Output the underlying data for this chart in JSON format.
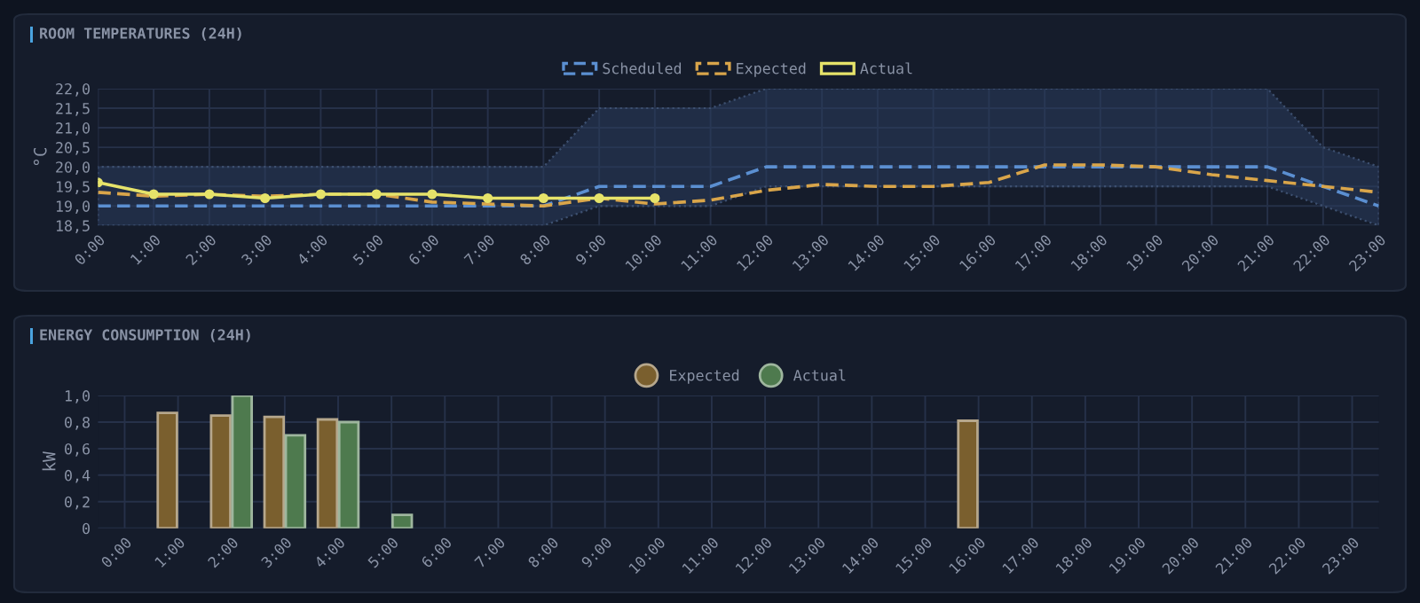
{
  "chart_data": [
    {
      "type": "line",
      "title": "ROOM TEMPERATURES (24H)",
      "ylabel": "°C",
      "categories": [
        "0:00",
        "1:00",
        "2:00",
        "3:00",
        "4:00",
        "5:00",
        "6:00",
        "7:00",
        "8:00",
        "9:00",
        "10:00",
        "11:00",
        "12:00",
        "13:00",
        "14:00",
        "15:00",
        "16:00",
        "17:00",
        "18:00",
        "19:00",
        "20:00",
        "21:00",
        "22:00",
        "23:00"
      ],
      "series": [
        {
          "name": "Scheduled",
          "color": "#5b8fd1",
          "line_style": "dashed",
          "marker": "none",
          "values": [
            19.0,
            19.0,
            19.0,
            19.0,
            19.0,
            19.0,
            19.0,
            19.0,
            19.0,
            19.5,
            19.5,
            19.5,
            20.0,
            20.0,
            20.0,
            20.0,
            20.0,
            20.0,
            20.0,
            20.0,
            20.0,
            20.0,
            19.5,
            19.0
          ],
          "lower": [
            18.5,
            18.5,
            18.5,
            18.5,
            18.5,
            18.5,
            18.5,
            18.5,
            18.5,
            19.0,
            19.0,
            19.0,
            19.5,
            19.5,
            19.5,
            19.5,
            19.5,
            19.5,
            19.5,
            19.5,
            19.5,
            19.5,
            19.0,
            18.5
          ],
          "upper": [
            20.0,
            20.0,
            20.0,
            20.0,
            20.0,
            20.0,
            20.0,
            20.0,
            20.0,
            21.5,
            21.5,
            21.5,
            22.0,
            22.0,
            22.0,
            22.0,
            22.0,
            22.0,
            22.0,
            22.0,
            22.0,
            22.0,
            20.5,
            20.0
          ]
        },
        {
          "name": "Expected",
          "color": "#d9a54a",
          "line_style": "dashed",
          "marker": "none",
          "values": [
            19.35,
            19.25,
            19.3,
            19.25,
            19.3,
            19.3,
            19.1,
            19.05,
            19.0,
            19.2,
            19.05,
            19.15,
            19.4,
            19.55,
            19.5,
            19.5,
            19.6,
            20.05,
            20.05,
            20.0,
            19.8,
            19.65,
            19.5,
            19.35
          ]
        },
        {
          "name": "Actual",
          "color": "#e6e36a",
          "line_style": "solid",
          "marker": "circle",
          "values": [
            19.6,
            19.3,
            19.3,
            19.2,
            19.3,
            19.3,
            19.3,
            19.2,
            19.2,
            19.2,
            19.2,
            null,
            null,
            null,
            null,
            null,
            null,
            null,
            null,
            null,
            null,
            null,
            null,
            null
          ]
        }
      ],
      "ylim": [
        18.5,
        22.0
      ],
      "yticks": [
        {
          "value": 18.5,
          "label": "18,5"
        },
        {
          "value": 19.0,
          "label": "19,0"
        },
        {
          "value": 19.5,
          "label": "19,5"
        },
        {
          "value": 20.0,
          "label": "20,0"
        },
        {
          "value": 20.5,
          "label": "20,5"
        },
        {
          "value": 21.0,
          "label": "21,0"
        },
        {
          "value": 21.5,
          "label": "21,5"
        },
        {
          "value": 22.0,
          "label": "22,0"
        }
      ],
      "grid": true,
      "legend": "top"
    },
    {
      "type": "bar",
      "title": "ENERGY CONSUMPTION (24H)",
      "ylabel": "kW",
      "categories": [
        "0:00",
        "1:00",
        "2:00",
        "3:00",
        "4:00",
        "5:00",
        "6:00",
        "7:00",
        "8:00",
        "9:00",
        "10:00",
        "11:00",
        "12:00",
        "13:00",
        "14:00",
        "15:00",
        "16:00",
        "17:00",
        "18:00",
        "19:00",
        "20:00",
        "21:00",
        "22:00",
        "23:00"
      ],
      "series": [
        {
          "name": "Expected",
          "color": "#7a5f2e",
          "values": [
            null,
            0.87,
            0.85,
            0.84,
            0.82,
            null,
            null,
            null,
            null,
            null,
            null,
            null,
            null,
            null,
            null,
            null,
            0.81,
            null,
            null,
            null,
            null,
            null,
            null,
            null
          ]
        },
        {
          "name": "Actual",
          "color": "#4e7a4e",
          "values": [
            null,
            null,
            1.0,
            0.7,
            0.8,
            0.1,
            null,
            null,
            null,
            null,
            null,
            null,
            null,
            null,
            null,
            null,
            null,
            null,
            null,
            null,
            null,
            null,
            null,
            null
          ]
        }
      ],
      "ylim": [
        0,
        1.0
      ],
      "yticks": [
        0,
        {
          "value": 0.2,
          "label": "0,2"
        },
        {
          "value": 0.4,
          "label": "0,4"
        },
        {
          "value": 0.6,
          "label": "0,6"
        },
        {
          "value": 0.8,
          "label": "0,8"
        },
        {
          "value": 1.0,
          "label": "1,0"
        }
      ],
      "grid": true,
      "legend": "top"
    }
  ]
}
